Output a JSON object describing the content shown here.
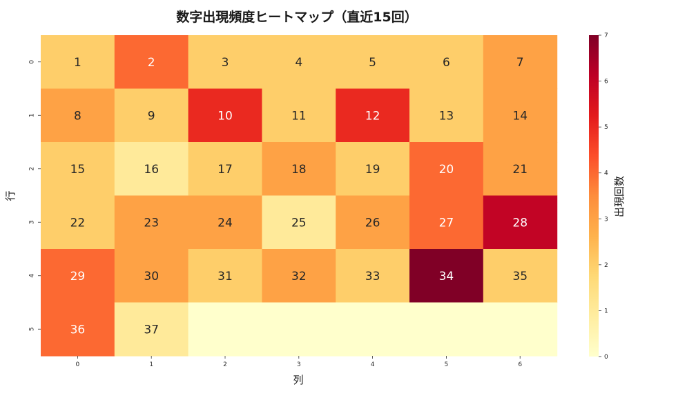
{
  "chart_data": {
    "type": "heatmap",
    "title": "数字出現頻度ヒートマップ（直近15回）",
    "xlabel": "列",
    "ylabel": "行",
    "x_ticks": [
      "0",
      "1",
      "2",
      "3",
      "4",
      "5",
      "6"
    ],
    "y_ticks": [
      "0",
      "1",
      "2",
      "3",
      "4",
      "5"
    ],
    "values": [
      [
        2,
        4,
        2,
        2,
        2,
        2,
        3
      ],
      [
        3,
        2,
        5,
        2,
        5,
        2,
        3
      ],
      [
        2,
        1,
        2,
        3,
        2,
        4,
        3
      ],
      [
        2,
        3,
        3,
        1,
        3,
        4,
        6
      ],
      [
        4,
        3,
        2,
        3,
        2,
        7,
        2
      ],
      [
        4,
        1,
        0,
        0,
        0,
        0,
        0
      ]
    ],
    "annotations": [
      [
        "1",
        "2",
        "3",
        "4",
        "5",
        "6",
        "7"
      ],
      [
        "8",
        "9",
        "10",
        "11",
        "12",
        "13",
        "14"
      ],
      [
        "15",
        "16",
        "17",
        "18",
        "19",
        "20",
        "21"
      ],
      [
        "22",
        "23",
        "24",
        "25",
        "26",
        "27",
        "28"
      ],
      [
        "29",
        "30",
        "31",
        "32",
        "33",
        "34",
        "35"
      ],
      [
        "36",
        "37",
        "",
        "",
        "",
        "",
        ""
      ]
    ],
    "colormap": "YlOrRd",
    "vmin": 0,
    "vmax": 7,
    "colorbar": {
      "label": "出現回数",
      "ticks": [
        "0",
        "1",
        "2",
        "3",
        "4",
        "5",
        "6",
        "7"
      ]
    }
  }
}
